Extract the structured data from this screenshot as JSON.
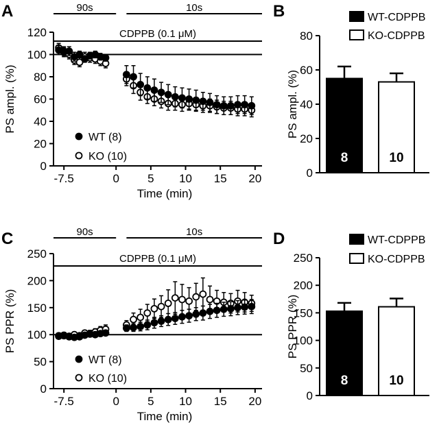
{
  "chart_data": [
    {
      "panel": "A",
      "type": "scatter",
      "xlabel": "Time (min)",
      "ylabel": "PS ampl. (%)",
      "xlim": [
        -9,
        21
      ],
      "ylim": [
        0,
        120
      ],
      "xticks": [
        -7.5,
        0,
        5,
        10,
        15,
        20
      ],
      "xtick_labels": [
        "-7.5",
        "0",
        "5",
        "10",
        "15",
        "20"
      ],
      "yticks": [
        0,
        20,
        40,
        60,
        80,
        100,
        120
      ],
      "ytick_labels": [
        "0",
        "20",
        "40",
        "60",
        "80",
        "100",
        "120"
      ],
      "baseline": 100,
      "segments": [
        {
          "label": "90s",
          "x0": -9,
          "x1": 0
        },
        {
          "label": "10s",
          "x0": 1.5,
          "x1": 21
        }
      ],
      "drug": {
        "label": "CDPPB (0.1 μM)",
        "x0": -9,
        "x1": 21
      },
      "series": [
        {
          "name": "WT (8)",
          "fill": "#000000",
          "x": [
            -8.25,
            -7.5,
            -6.75,
            -6,
            -5.25,
            -4.5,
            -3.75,
            -3,
            -2.25,
            -1.5,
            1.5,
            2.5,
            3.5,
            4.5,
            5.5,
            6.5,
            7.5,
            8.5,
            9.5,
            10.5,
            11.5,
            12.5,
            13.5,
            14.5,
            15.5,
            16.5,
            17.5,
            18.5,
            19.5
          ],
          "y": [
            104,
            103,
            103,
            98,
            100,
            96,
            99,
            100,
            98,
            97,
            82,
            80,
            73,
            70,
            68,
            66,
            64,
            62,
            61,
            60,
            59,
            58,
            57,
            55,
            54,
            54,
            55,
            55,
            54
          ],
          "err": [
            4,
            4,
            4,
            4,
            3,
            3,
            3,
            3,
            3,
            3,
            8,
            10,
            10,
            10,
            10,
            9,
            9,
            9,
            9,
            9,
            9,
            8,
            8,
            8,
            8,
            8,
            8,
            8,
            8
          ]
        },
        {
          "name": "KO (10)",
          "fill": "#ffffff",
          "x": [
            -8.25,
            -7.5,
            -6.75,
            -6,
            -5.25,
            -4.5,
            -3.75,
            -3,
            -2.25,
            -1.5,
            1.5,
            2.5,
            3.5,
            4.5,
            5.5,
            6.5,
            7.5,
            8.5,
            9.5,
            10.5,
            11.5,
            12.5,
            13.5,
            14.5,
            15.5,
            16.5,
            17.5,
            18.5,
            19.5
          ],
          "y": [
            106,
            102,
            100,
            95,
            93,
            98,
            97,
            96,
            94,
            92,
            78,
            72,
            66,
            62,
            60,
            58,
            56,
            56,
            55,
            56,
            55,
            54,
            54,
            53,
            52,
            52,
            51,
            51,
            50
          ],
          "err": [
            4,
            4,
            4,
            4,
            4,
            4,
            4,
            4,
            4,
            4,
            6,
            7,
            7,
            6,
            6,
            6,
            6,
            6,
            6,
            6,
            6,
            6,
            6,
            6,
            6,
            6,
            6,
            6,
            6
          ]
        }
      ],
      "legend": [
        "WT (8)",
        "KO (10)"
      ]
    },
    {
      "panel": "B",
      "type": "bar",
      "ylabel": "PS ampl. (%)",
      "ylim": [
        0,
        80
      ],
      "yticks": [
        0,
        20,
        40,
        60,
        80
      ],
      "ytick_labels": [
        "0",
        "20",
        "40",
        "60",
        "80"
      ],
      "categories": [
        "WT-CDPPB",
        "KO-CDPPB"
      ],
      "values": [
        55,
        53
      ],
      "err": [
        7,
        5
      ],
      "fills": [
        "#000000",
        "#ffffff"
      ],
      "n_labels": [
        "8",
        "10"
      ],
      "legend": [
        "WT-CDPPB",
        "KO-CDPPB"
      ]
    },
    {
      "panel": "C",
      "type": "scatter",
      "xlabel": "Time (min)",
      "ylabel": "PS PPR (%)",
      "xlim": [
        -9,
        21
      ],
      "ylim": [
        0,
        250
      ],
      "xticks": [
        -7.5,
        0,
        5,
        10,
        15,
        20
      ],
      "xtick_labels": [
        "-7.5",
        "0",
        "5",
        "10",
        "15",
        "20"
      ],
      "yticks": [
        0,
        50,
        100,
        150,
        200,
        250
      ],
      "ytick_labels": [
        "0",
        "50",
        "100",
        "150",
        "200",
        "250"
      ],
      "baseline": 100,
      "segments": [
        {
          "label": "90s",
          "x0": -9,
          "x1": 0
        },
        {
          "label": "10s",
          "x0": 1.5,
          "x1": 21
        }
      ],
      "drug": {
        "label": "CDPPB (0.1 μM)",
        "x0": -9,
        "x1": 21
      },
      "series": [
        {
          "name": "WT (8)",
          "fill": "#000000",
          "x": [
            -8.25,
            -7.5,
            -6.75,
            -6,
            -5.25,
            -4.5,
            -3.75,
            -3,
            -2.25,
            -1.5,
            1.5,
            2.5,
            3.5,
            4.5,
            5.5,
            6.5,
            7.5,
            8.5,
            9.5,
            10.5,
            11.5,
            12.5,
            13.5,
            14.5,
            15.5,
            16.5,
            17.5,
            18.5,
            19.5
          ],
          "y": [
            97,
            98,
            97,
            95,
            96,
            99,
            101,
            100,
            102,
            103,
            112,
            113,
            115,
            118,
            122,
            125,
            128,
            130,
            133,
            135,
            138,
            140,
            143,
            145,
            147,
            148,
            150,
            151,
            152
          ],
          "err": [
            4,
            4,
            4,
            4,
            4,
            4,
            4,
            4,
            4,
            4,
            6,
            7,
            8,
            9,
            10,
            10,
            11,
            11,
            12,
            12,
            12,
            13,
            13,
            13,
            13,
            13,
            13,
            13,
            13
          ]
        },
        {
          "name": "KO (10)",
          "fill": "#ffffff",
          "x": [
            -8.25,
            -7.5,
            -6.75,
            -6,
            -5.25,
            -4.5,
            -3.75,
            -3,
            -2.25,
            -1.5,
            1.5,
            2.5,
            3.5,
            4.5,
            5.5,
            6.5,
            7.5,
            8.5,
            9.5,
            10.5,
            11.5,
            12.5,
            13.5,
            14.5,
            15.5,
            16.5,
            17.5,
            18.5,
            19.5
          ],
          "y": [
            98,
            99,
            96,
            100,
            98,
            103,
            102,
            105,
            108,
            110,
            118,
            128,
            132,
            140,
            148,
            152,
            158,
            168,
            165,
            162,
            170,
            175,
            165,
            162,
            160,
            158,
            162,
            160,
            158
          ],
          "err": [
            5,
            5,
            5,
            5,
            5,
            5,
            6,
            6,
            7,
            8,
            8,
            12,
            15,
            16,
            18,
            20,
            25,
            30,
            28,
            25,
            25,
            30,
            25,
            20,
            18,
            18,
            20,
            18,
            15
          ]
        }
      ],
      "legend": [
        "WT (8)",
        "KO (10)"
      ]
    },
    {
      "panel": "D",
      "type": "bar",
      "ylabel": "PS PPR (%)",
      "ylim": [
        0,
        250
      ],
      "yticks": [
        0,
        50,
        100,
        150,
        200,
        250
      ],
      "ytick_labels": [
        "0",
        "50",
        "100",
        "150",
        "200",
        "250"
      ],
      "categories": [
        "WT-CDPPB",
        "KO-CDPPB"
      ],
      "values": [
        153,
        161
      ],
      "err": [
        15,
        15
      ],
      "fills": [
        "#000000",
        "#ffffff"
      ],
      "n_labels": [
        "8",
        "10"
      ],
      "legend": [
        "WT-CDPPB",
        "KO-CDPPB"
      ]
    }
  ]
}
